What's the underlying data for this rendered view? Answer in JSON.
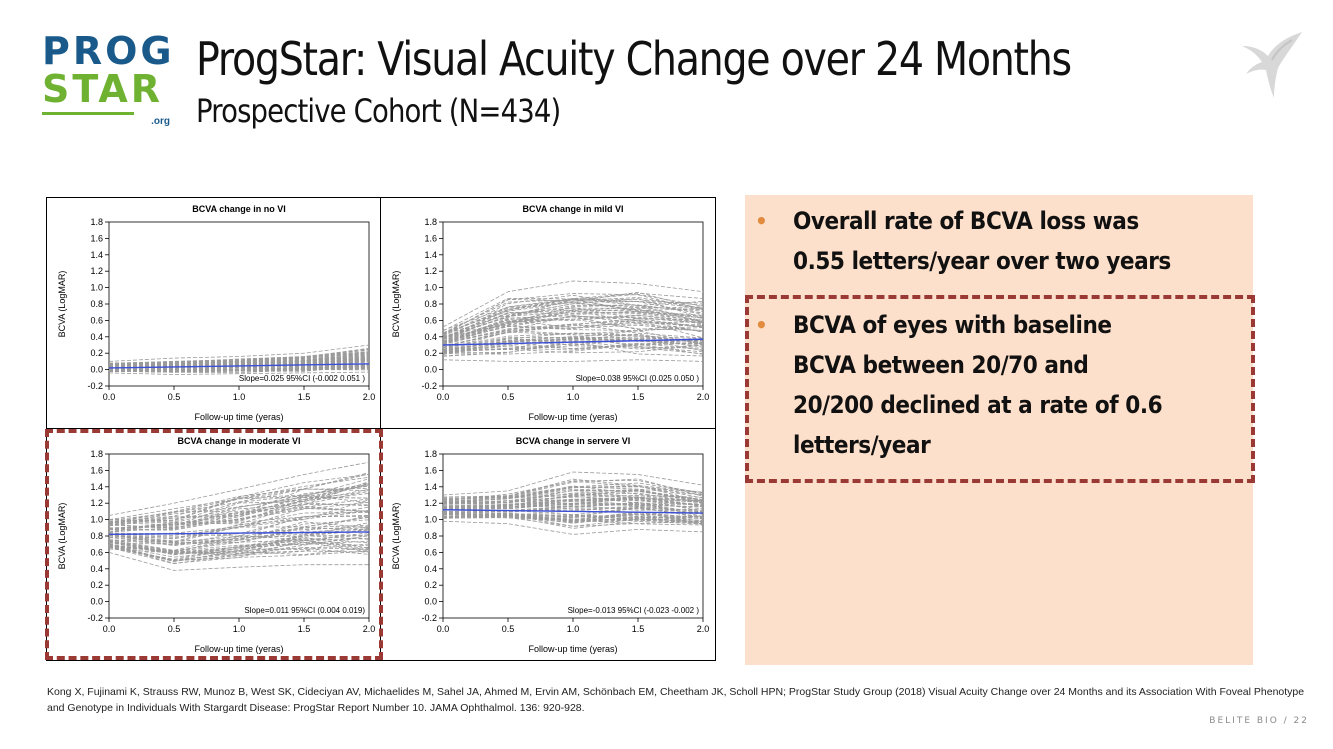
{
  "logo": {
    "line1": "PROG",
    "line2": "STAR",
    "suffix": ".org"
  },
  "title": "ProgStar: Visual Acuity Change over 24 Months",
  "subtitle": "Prospective Cohort (N=434)",
  "bullets": [
    {
      "lines": [
        "Overall rate of BCVA loss was",
        "0.55 letters/year over two years"
      ]
    },
    {
      "lines": [
        "BCVA of eyes with baseline",
        "BCVA between 20/70 and",
        "20/200 declined at a rate of 0.6",
        "letters/year"
      ]
    }
  ],
  "citation": "Kong X, Fujinami K, Strauss RW, Munoz B, West SK, Cideciyan AV, Michaelides M, Sahel JA, Ahmed M, Ervin AM, Schönbach EM, Cheetham JK, Scholl HPN; ProgStar Study Group (2018) Visual Acuity Change over 24 Months and its Association With Foveal Phenotype and Genotype in Individuals With Stargardt Disease: ProgStar Report Number 10. JAMA Ophthalmol. 136: 920-928.",
  "footer": "BELITE BIO  /  22",
  "colors": {
    "accent": "#9b3a35",
    "bullet": "#e28a3e",
    "panel_bg": "#fde0cb",
    "trend": "#3b4fd8",
    "trajectory": "#9a9a9a"
  },
  "chart_data": [
    {
      "type": "line",
      "title": "BCVA change in no VI",
      "xlabel": "Follow-up time (yeras)",
      "ylabel": "BCVA (LogMAR)",
      "xlim": [
        0,
        2
      ],
      "ylim": [
        -0.2,
        1.8
      ],
      "xticks": [
        "0.0",
        "0.5",
        "1.0",
        "1.5",
        "2.0"
      ],
      "yticks": [
        "-0.2",
        "0.0",
        "0.2",
        "0.4",
        "0.6",
        "0.8",
        "1.0",
        "1.2",
        "1.4",
        "1.6",
        "1.8"
      ],
      "trend": {
        "x": [
          0,
          2
        ],
        "y": [
          0.02,
          0.07
        ]
      },
      "band": {
        "x": [
          0,
          0.5,
          1,
          1.5,
          2
        ],
        "low": [
          -0.04,
          -0.06,
          -0.05,
          -0.04,
          -0.03
        ],
        "high": [
          0.1,
          0.14,
          0.16,
          0.2,
          0.3
        ]
      },
      "annotation": "Slope=0.025 95%CI (-0.002 0.051 )"
    },
    {
      "type": "line",
      "title": "BCVA change in mild VI",
      "xlabel": "Follow-up time (yeras)",
      "ylabel": "BCVA (LogMAR)",
      "xlim": [
        0,
        2
      ],
      "ylim": [
        -0.2,
        1.8
      ],
      "xticks": [
        "0.0",
        "0.5",
        "1.0",
        "1.5",
        "2.0"
      ],
      "yticks": [
        "-0.2",
        "0.0",
        "0.2",
        "0.4",
        "0.6",
        "0.8",
        "1.0",
        "1.2",
        "1.4",
        "1.6",
        "1.8"
      ],
      "trend": {
        "x": [
          0,
          2
        ],
        "y": [
          0.3,
          0.37
        ]
      },
      "band": {
        "x": [
          0,
          0.5,
          1,
          1.5,
          2
        ],
        "low": [
          0.12,
          0.1,
          0.1,
          0.12,
          0.1
        ],
        "high": [
          0.52,
          0.95,
          1.08,
          1.05,
          0.95
        ]
      },
      "annotation": "Slope=0.038 95%CI (0.025 0.050 )"
    },
    {
      "type": "line",
      "title": "BCVA change in moderate VI",
      "xlabel": "Follow-up time (yeras)",
      "ylabel": "BCVA (LogMAR)",
      "xlim": [
        0,
        2
      ],
      "ylim": [
        -0.2,
        1.8
      ],
      "xticks": [
        "0.0",
        "0.5",
        "1.0",
        "1.5",
        "2.0"
      ],
      "yticks": [
        "-0.2",
        "0.0",
        "0.2",
        "0.4",
        "0.6",
        "0.8",
        "1.0",
        "1.2",
        "1.4",
        "1.6",
        "1.8"
      ],
      "trend": {
        "x": [
          0,
          2
        ],
        "y": [
          0.82,
          0.85
        ]
      },
      "band": {
        "x": [
          0,
          0.5,
          1,
          1.5,
          2
        ],
        "low": [
          0.6,
          0.38,
          0.42,
          0.45,
          0.45
        ],
        "high": [
          1.05,
          1.2,
          1.37,
          1.55,
          1.7
        ]
      },
      "annotation": "Slope=0.011 95%CI (0.004 0.019)"
    },
    {
      "type": "line",
      "title": "BCVA change in servere VI",
      "xlabel": "Follow-up time (yeras)",
      "ylabel": "BCVA (LogMAR)",
      "xlim": [
        0,
        2
      ],
      "ylim": [
        -0.2,
        1.8
      ],
      "xticks": [
        "0.0",
        "0.5",
        "1.0",
        "1.5",
        "2.0"
      ],
      "yticks": [
        "-0.2",
        "0.0",
        "0.2",
        "0.4",
        "0.6",
        "0.8",
        "1.0",
        "1.2",
        "1.4",
        "1.6",
        "1.8"
      ],
      "trend": {
        "x": [
          0,
          2
        ],
        "y": [
          1.12,
          1.08
        ]
      },
      "band": {
        "x": [
          0,
          0.5,
          1,
          1.5,
          2
        ],
        "low": [
          0.98,
          0.95,
          0.82,
          0.88,
          0.85
        ],
        "high": [
          1.3,
          1.35,
          1.58,
          1.55,
          1.42
        ]
      },
      "annotation": "Slope=-0.013 95%CI (-0.023  -0.002 )"
    }
  ]
}
